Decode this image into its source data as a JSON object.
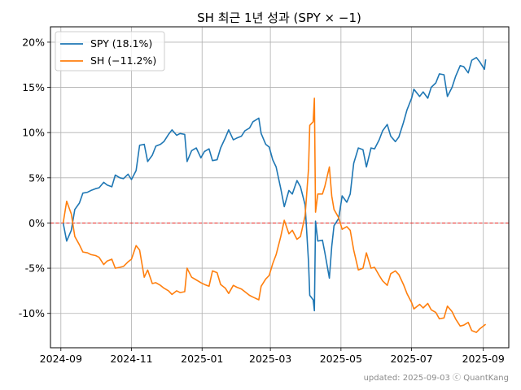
{
  "chart_data": {
    "type": "line",
    "title": "SH 최근 1년 성과 (SPY × −1)",
    "xlabel": "",
    "ylabel": "",
    "x_range": [
      "2024-08-23",
      "2025-09-23"
    ],
    "ylim": [
      -13.8,
      21.7
    ],
    "x_ticks": [
      {
        "date": "2024-09-01",
        "label": "2024-09"
      },
      {
        "date": "2024-11-01",
        "label": "2024-11"
      },
      {
        "date": "2025-01-01",
        "label": "2025-01"
      },
      {
        "date": "2025-03-01",
        "label": "2025-03"
      },
      {
        "date": "2025-05-01",
        "label": "2025-05"
      },
      {
        "date": "2025-07-01",
        "label": "2025-07"
      },
      {
        "date": "2025-09-01",
        "label": "2025-09"
      }
    ],
    "y_ticks": [
      {
        "value": 20,
        "label": "20%"
      },
      {
        "value": 15,
        "label": "15%"
      },
      {
        "value": 10,
        "label": "10%"
      },
      {
        "value": 5,
        "label": "5%"
      },
      {
        "value": 0,
        "label": "0%"
      },
      {
        "value": -5,
        "label": "-5%"
      },
      {
        "value": -10,
        "label": "-10%"
      }
    ],
    "grid": true,
    "legend_position": "top-left",
    "reference_line": {
      "y": 0,
      "color": "#e8221f",
      "style": "dashed"
    },
    "series": [
      {
        "name": "SPY (18.1%)",
        "color": "#1f77b4",
        "points": [
          [
            "2024-09-03",
            0.0
          ],
          [
            "2024-09-06",
            -2.0
          ],
          [
            "2024-09-10",
            -0.8
          ],
          [
            "2024-09-13",
            1.5
          ],
          [
            "2024-09-17",
            2.2
          ],
          [
            "2024-09-20",
            3.3
          ],
          [
            "2024-09-24",
            3.4
          ],
          [
            "2024-09-27",
            3.6
          ],
          [
            "2024-10-01",
            3.8
          ],
          [
            "2024-10-04",
            3.9
          ],
          [
            "2024-10-08",
            4.5
          ],
          [
            "2024-10-11",
            4.2
          ],
          [
            "2024-10-15",
            4.0
          ],
          [
            "2024-10-18",
            5.3
          ],
          [
            "2024-10-22",
            5.0
          ],
          [
            "2024-10-25",
            4.9
          ],
          [
            "2024-10-29",
            5.4
          ],
          [
            "2024-11-01",
            4.8
          ],
          [
            "2024-11-05",
            5.8
          ],
          [
            "2024-11-08",
            8.6
          ],
          [
            "2024-11-12",
            8.7
          ],
          [
            "2024-11-15",
            6.8
          ],
          [
            "2024-11-19",
            7.5
          ],
          [
            "2024-11-22",
            8.5
          ],
          [
            "2024-11-26",
            8.7
          ],
          [
            "2024-11-29",
            9.0
          ],
          [
            "2024-12-03",
            9.8
          ],
          [
            "2024-12-06",
            10.3
          ],
          [
            "2024-12-10",
            9.7
          ],
          [
            "2024-12-13",
            9.9
          ],
          [
            "2024-12-17",
            9.8
          ],
          [
            "2024-12-19",
            6.8
          ],
          [
            "2024-12-23",
            8.0
          ],
          [
            "2024-12-27",
            8.3
          ],
          [
            "2024-12-31",
            7.2
          ],
          [
            "2025-01-03",
            7.9
          ],
          [
            "2025-01-07",
            8.2
          ],
          [
            "2025-01-10",
            6.9
          ],
          [
            "2025-01-14",
            7.0
          ],
          [
            "2025-01-17",
            8.3
          ],
          [
            "2025-01-21",
            9.4
          ],
          [
            "2025-01-24",
            10.3
          ],
          [
            "2025-01-28",
            9.2
          ],
          [
            "2025-01-31",
            9.4
          ],
          [
            "2025-02-04",
            9.6
          ],
          [
            "2025-02-07",
            10.2
          ],
          [
            "2025-02-11",
            10.5
          ],
          [
            "2025-02-14",
            11.2
          ],
          [
            "2025-02-19",
            11.6
          ],
          [
            "2025-02-21",
            9.9
          ],
          [
            "2025-02-25",
            8.7
          ],
          [
            "2025-02-28",
            8.4
          ],
          [
            "2025-03-03",
            7.0
          ],
          [
            "2025-03-06",
            6.2
          ],
          [
            "2025-03-10",
            3.8
          ],
          [
            "2025-03-13",
            1.8
          ],
          [
            "2025-03-17",
            3.6
          ],
          [
            "2025-03-20",
            3.2
          ],
          [
            "2025-03-24",
            4.7
          ],
          [
            "2025-03-27",
            4.0
          ],
          [
            "2025-03-31",
            2.0
          ],
          [
            "2025-04-03",
            -4.3
          ],
          [
            "2025-04-04",
            -8.0
          ],
          [
            "2025-04-07",
            -8.5
          ],
          [
            "2025-04-08",
            -9.7
          ],
          [
            "2025-04-09",
            0.2
          ],
          [
            "2025-04-11",
            -2.0
          ],
          [
            "2025-04-15",
            -1.9
          ],
          [
            "2025-04-17",
            -3.2
          ],
          [
            "2025-04-21",
            -6.1
          ],
          [
            "2025-04-23",
            -2.6
          ],
          [
            "2025-04-25",
            -0.3
          ],
          [
            "2025-04-29",
            0.5
          ],
          [
            "2025-05-02",
            3.0
          ],
          [
            "2025-05-06",
            2.3
          ],
          [
            "2025-05-09",
            3.2
          ],
          [
            "2025-05-12",
            6.6
          ],
          [
            "2025-05-16",
            8.3
          ],
          [
            "2025-05-20",
            8.1
          ],
          [
            "2025-05-23",
            6.2
          ],
          [
            "2025-05-27",
            8.3
          ],
          [
            "2025-05-30",
            8.2
          ],
          [
            "2025-06-03",
            9.2
          ],
          [
            "2025-06-06",
            10.2
          ],
          [
            "2025-06-10",
            10.9
          ],
          [
            "2025-06-13",
            9.6
          ],
          [
            "2025-06-17",
            9.0
          ],
          [
            "2025-06-20",
            9.5
          ],
          [
            "2025-06-24",
            11.1
          ],
          [
            "2025-06-27",
            12.5
          ],
          [
            "2025-07-01",
            13.8
          ],
          [
            "2025-07-03",
            14.8
          ],
          [
            "2025-07-08",
            14.0
          ],
          [
            "2025-07-11",
            14.5
          ],
          [
            "2025-07-15",
            13.8
          ],
          [
            "2025-07-18",
            15.0
          ],
          [
            "2025-07-22",
            15.5
          ],
          [
            "2025-07-25",
            16.5
          ],
          [
            "2025-07-29",
            16.4
          ],
          [
            "2025-08-01",
            14.0
          ],
          [
            "2025-08-05",
            15.0
          ],
          [
            "2025-08-08",
            16.2
          ],
          [
            "2025-08-12",
            17.4
          ],
          [
            "2025-08-15",
            17.3
          ],
          [
            "2025-08-19",
            16.6
          ],
          [
            "2025-08-22",
            18.0
          ],
          [
            "2025-08-26",
            18.3
          ],
          [
            "2025-08-29",
            17.8
          ],
          [
            "2025-09-02",
            17.0
          ],
          [
            "2025-09-03",
            18.1
          ]
        ]
      },
      {
        "name": "SH (−11.2%)",
        "color": "#ff7f0e",
        "points": [
          [
            "2024-09-03",
            0.0
          ],
          [
            "2024-09-06",
            2.4
          ],
          [
            "2024-09-10",
            1.0
          ],
          [
            "2024-09-13",
            -1.5
          ],
          [
            "2024-09-17",
            -2.4
          ],
          [
            "2024-09-20",
            -3.2
          ],
          [
            "2024-09-24",
            -3.3
          ],
          [
            "2024-09-27",
            -3.5
          ],
          [
            "2024-10-01",
            -3.6
          ],
          [
            "2024-10-04",
            -3.8
          ],
          [
            "2024-10-08",
            -4.6
          ],
          [
            "2024-10-11",
            -4.2
          ],
          [
            "2024-10-15",
            -4.0
          ],
          [
            "2024-10-18",
            -5.0
          ],
          [
            "2024-10-22",
            -4.9
          ],
          [
            "2024-10-25",
            -4.8
          ],
          [
            "2024-10-29",
            -4.3
          ],
          [
            "2024-11-01",
            -4.0
          ],
          [
            "2024-11-05",
            -2.5
          ],
          [
            "2024-11-08",
            -3.0
          ],
          [
            "2024-11-12",
            -6.0
          ],
          [
            "2024-11-15",
            -5.2
          ],
          [
            "2024-11-19",
            -6.7
          ],
          [
            "2024-11-22",
            -6.6
          ],
          [
            "2024-11-26",
            -6.9
          ],
          [
            "2024-11-29",
            -7.2
          ],
          [
            "2024-12-03",
            -7.5
          ],
          [
            "2024-12-06",
            -7.9
          ],
          [
            "2024-12-10",
            -7.5
          ],
          [
            "2024-12-13",
            -7.7
          ],
          [
            "2024-12-17",
            -7.6
          ],
          [
            "2024-12-19",
            -5.0
          ],
          [
            "2024-12-23",
            -6.0
          ],
          [
            "2024-12-27",
            -6.3
          ],
          [
            "2024-12-31",
            -6.6
          ],
          [
            "2025-01-03",
            -6.8
          ],
          [
            "2025-01-07",
            -7.0
          ],
          [
            "2025-01-10",
            -5.3
          ],
          [
            "2025-01-14",
            -5.5
          ],
          [
            "2025-01-17",
            -6.8
          ],
          [
            "2025-01-21",
            -7.2
          ],
          [
            "2025-01-24",
            -7.8
          ],
          [
            "2025-01-28",
            -6.9
          ],
          [
            "2025-01-31",
            -7.1
          ],
          [
            "2025-02-04",
            -7.3
          ],
          [
            "2025-02-07",
            -7.6
          ],
          [
            "2025-02-11",
            -8.0
          ],
          [
            "2025-02-14",
            -8.2
          ],
          [
            "2025-02-19",
            -8.5
          ],
          [
            "2025-02-21",
            -7.0
          ],
          [
            "2025-02-25",
            -6.2
          ],
          [
            "2025-02-28",
            -5.8
          ],
          [
            "2025-03-03",
            -4.5
          ],
          [
            "2025-03-06",
            -3.5
          ],
          [
            "2025-03-10",
            -1.5
          ],
          [
            "2025-03-13",
            0.3
          ],
          [
            "2025-03-17",
            -1.2
          ],
          [
            "2025-03-20",
            -0.8
          ],
          [
            "2025-03-24",
            -1.8
          ],
          [
            "2025-03-27",
            -1.5
          ],
          [
            "2025-03-31",
            0.8
          ],
          [
            "2025-04-03",
            6.0
          ],
          [
            "2025-04-04",
            10.8
          ],
          [
            "2025-04-07",
            11.2
          ],
          [
            "2025-04-08",
            13.8
          ],
          [
            "2025-04-09",
            1.2
          ],
          [
            "2025-04-11",
            3.2
          ],
          [
            "2025-04-15",
            3.2
          ],
          [
            "2025-04-17",
            4.0
          ],
          [
            "2025-04-21",
            6.2
          ],
          [
            "2025-04-23",
            3.0
          ],
          [
            "2025-04-25",
            1.5
          ],
          [
            "2025-04-29",
            0.6
          ],
          [
            "2025-05-02",
            -0.7
          ],
          [
            "2025-05-06",
            -0.4
          ],
          [
            "2025-05-09",
            -0.8
          ],
          [
            "2025-05-12",
            -3.0
          ],
          [
            "2025-05-16",
            -5.2
          ],
          [
            "2025-05-20",
            -5.0
          ],
          [
            "2025-05-23",
            -3.3
          ],
          [
            "2025-05-27",
            -5.0
          ],
          [
            "2025-05-30",
            -4.9
          ],
          [
            "2025-06-03",
            -5.8
          ],
          [
            "2025-06-06",
            -6.4
          ],
          [
            "2025-06-10",
            -6.9
          ],
          [
            "2025-06-13",
            -5.6
          ],
          [
            "2025-06-17",
            -5.3
          ],
          [
            "2025-06-20",
            -5.7
          ],
          [
            "2025-06-24",
            -6.8
          ],
          [
            "2025-06-27",
            -7.8
          ],
          [
            "2025-07-01",
            -8.8
          ],
          [
            "2025-07-03",
            -9.5
          ],
          [
            "2025-07-08",
            -9.0
          ],
          [
            "2025-07-11",
            -9.4
          ],
          [
            "2025-07-15",
            -8.9
          ],
          [
            "2025-07-18",
            -9.6
          ],
          [
            "2025-07-22",
            -9.9
          ],
          [
            "2025-07-25",
            -10.6
          ],
          [
            "2025-07-29",
            -10.5
          ],
          [
            "2025-08-01",
            -9.2
          ],
          [
            "2025-08-05",
            -9.8
          ],
          [
            "2025-08-08",
            -10.6
          ],
          [
            "2025-08-12",
            -11.4
          ],
          [
            "2025-08-15",
            -11.3
          ],
          [
            "2025-08-19",
            -11.0
          ],
          [
            "2025-08-22",
            -11.9
          ],
          [
            "2025-08-26",
            -12.1
          ],
          [
            "2025-08-29",
            -11.7
          ],
          [
            "2025-09-02",
            -11.3
          ],
          [
            "2025-09-03",
            -11.2
          ]
        ]
      }
    ],
    "footer": "updated: 2025-09-03 ⓒ QuantKang"
  }
}
